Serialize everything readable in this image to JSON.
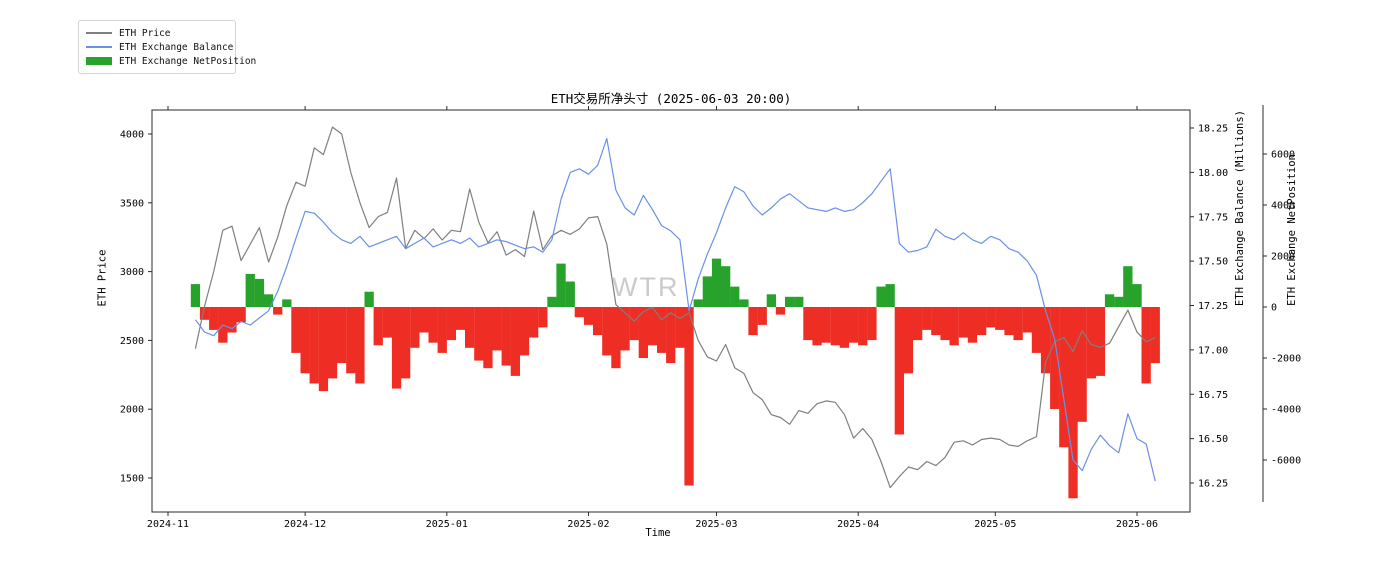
{
  "title": "ETH交易所净头寸 (2025-06-03 20:00)",
  "watermark": "WTR",
  "legend": {
    "position": "upper-left",
    "items": [
      {
        "label": "ETH Price",
        "type": "line",
        "color": "#7f7f7f"
      },
      {
        "label": "ETH Exchange Balance",
        "type": "line",
        "color": "#6b90e8"
      },
      {
        "label": "ETH Exchange NetPosition",
        "type": "patch",
        "color": "#27a32b"
      }
    ]
  },
  "axes": {
    "x": {
      "label": "Time",
      "tick_labels": [
        "2024-11",
        "2024-12",
        "2025-01",
        "2025-02",
        "2025-03",
        "2025-04",
        "2025-05",
        "2025-06"
      ],
      "tick_dates": [
        "2024-11-01",
        "2024-12-01",
        "2025-01-01",
        "2025-02-01",
        "2025-03-01",
        "2025-04-01",
        "2025-05-01",
        "2025-06-01"
      ]
    },
    "y_left": {
      "label": "ETH Price",
      "ticks": [
        4000,
        3500,
        3000,
        2500,
        2000,
        1500
      ]
    },
    "y_right_balance": {
      "label": "ETH Exchange Balance (Millions)",
      "ticks": [
        18.25,
        18.0,
        17.75,
        17.5,
        17.25,
        17.0,
        16.75,
        16.5,
        16.25
      ]
    },
    "y_right_netposition": {
      "label": "ETH Exchange NetPosition",
      "ticks": [
        6000,
        4000,
        2000,
        0,
        -2000,
        -4000,
        -6000
      ]
    }
  },
  "chart_data": {
    "type": "line+bar",
    "title": "ETH交易所净头寸 (2025-06-03 20:00)",
    "xlabel": "Time",
    "x_start": "2024-11-07",
    "x_step_days": 2,
    "x_range": [
      "2024-10-28",
      "2025-06-12"
    ],
    "grid": false,
    "legend_position": "upper-left",
    "axis_ranges": {
      "price": [
        1350,
        4150
      ],
      "balance_millions": [
        16.22,
        18.38
      ],
      "netposition": [
        -8000,
        8000
      ]
    },
    "series": [
      {
        "name": "ETH Price",
        "type": "line",
        "axis": "price",
        "color": "#7f7f7f",
        "values": [
          2440,
          2750,
          3000,
          3300,
          3330,
          3080,
          3200,
          3320,
          3070,
          3250,
          3480,
          3650,
          3620,
          3900,
          3850,
          4050,
          4000,
          3720,
          3500,
          3320,
          3400,
          3430,
          3680,
          3170,
          3300,
          3240,
          3310,
          3230,
          3300,
          3290,
          3600,
          3360,
          3210,
          3290,
          3120,
          3160,
          3110,
          3440,
          3160,
          3260,
          3300,
          3270,
          3310,
          3390,
          3400,
          3200,
          2760,
          2700,
          2640,
          2710,
          2740,
          2650,
          2700,
          2660,
          2700,
          2500,
          2380,
          2350,
          2470,
          2300,
          2260,
          2120,
          2070,
          1960,
          1940,
          1890,
          1990,
          1970,
          2040,
          2060,
          2050,
          1960,
          1790,
          1860,
          1780,
          1620,
          1430,
          1510,
          1580,
          1560,
          1620,
          1590,
          1650,
          1760,
          1770,
          1740,
          1780,
          1790,
          1780,
          1740,
          1730,
          1770,
          1800,
          2340,
          2490,
          2520,
          2420,
          2570,
          2470,
          2450,
          2480,
          2600,
          2720,
          2560,
          2490,
          2520
        ]
      },
      {
        "name": "ETH Exchange Balance",
        "type": "line",
        "axis": "balance_millions",
        "color": "#6b90e8",
        "values": [
          17.17,
          17.1,
          17.08,
          17.14,
          17.12,
          17.16,
          17.14,
          17.18,
          17.22,
          17.33,
          17.47,
          17.63,
          17.78,
          17.77,
          17.72,
          17.66,
          17.62,
          17.6,
          17.64,
          17.58,
          17.6,
          17.62,
          17.64,
          17.57,
          17.6,
          17.63,
          17.58,
          17.6,
          17.62,
          17.6,
          17.63,
          17.58,
          17.6,
          17.62,
          17.61,
          17.59,
          17.57,
          17.58,
          17.55,
          17.62,
          17.85,
          18.0,
          18.02,
          17.99,
          18.04,
          18.19,
          17.9,
          17.8,
          17.76,
          17.87,
          17.79,
          17.7,
          17.67,
          17.62,
          17.22,
          17.4,
          17.54,
          17.66,
          17.8,
          17.92,
          17.89,
          17.81,
          17.76,
          17.8,
          17.85,
          17.88,
          17.84,
          17.8,
          17.79,
          17.78,
          17.8,
          17.78,
          17.79,
          17.83,
          17.88,
          17.95,
          18.02,
          17.6,
          17.55,
          17.56,
          17.58,
          17.68,
          17.64,
          17.62,
          17.66,
          17.62,
          17.6,
          17.64,
          17.62,
          17.57,
          17.55,
          17.5,
          17.42,
          17.22,
          17.06,
          16.72,
          16.38,
          16.32,
          16.44,
          16.52,
          16.46,
          16.42,
          16.64,
          16.5,
          16.47,
          16.26
        ]
      },
      {
        "name": "ETH Exchange NetPosition",
        "type": "bar",
        "axis": "netposition",
        "color_positive": "#27a32b",
        "color_negative": "#ee2e24",
        "values": [
          900,
          -500,
          -900,
          -1400,
          -1000,
          -600,
          1300,
          1100,
          500,
          -300,
          300,
          -1800,
          -2600,
          -3000,
          -3300,
          -2800,
          -2200,
          -2600,
          -3000,
          600,
          -1500,
          -1200,
          -3200,
          -2800,
          -1600,
          -1000,
          -1400,
          -1800,
          -1300,
          -900,
          -1600,
          -2100,
          -2400,
          -1700,
          -2300,
          -2700,
          -1900,
          -1200,
          -800,
          400,
          1700,
          1000,
          -400,
          -700,
          -1100,
          -1900,
          -2400,
          -1700,
          -1300,
          -2000,
          -1500,
          -1800,
          -2200,
          -1600,
          -7000,
          300,
          1200,
          1900,
          1600,
          800,
          300,
          -1100,
          -700,
          500,
          -300,
          400,
          400,
          -1300,
          -1500,
          -1400,
          -1500,
          -1600,
          -1400,
          -1500,
          -1300,
          800,
          900,
          -5000,
          -2600,
          -1300,
          -900,
          -1100,
          -1300,
          -1500,
          -1200,
          -1400,
          -1100,
          -800,
          -900,
          -1100,
          -1300,
          -1000,
          -1800,
          -2600,
          -4000,
          -5500,
          -7500,
          -4500,
          -2800,
          -2700,
          500,
          400,
          1600,
          900,
          -3000,
          -2200
        ]
      }
    ]
  }
}
